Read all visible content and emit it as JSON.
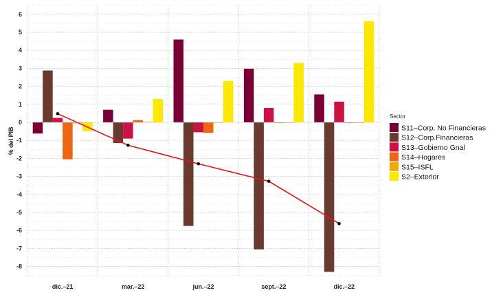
{
  "chart_data": {
    "type": "bar",
    "ylabel": "% del PIB",
    "xlabel": "",
    "ylim": [
      -8.8,
      6.5
    ],
    "yticks": [
      6,
      5,
      4,
      3,
      2,
      1,
      0,
      -1,
      -2,
      -3,
      -4,
      -5,
      -6,
      -7,
      -8
    ],
    "grid": true,
    "categories": [
      "dic.–21",
      "mar.–22",
      "jun.–22",
      "sept.–22",
      "dic.–22"
    ],
    "series": [
      {
        "name": "S11–Corp. No Financieras",
        "color": "#7a0033",
        "values": [
          -0.62,
          0.7,
          4.6,
          2.98,
          1.55
        ]
      },
      {
        "name": "S12–Corp.Financieras",
        "color": "#6b3a2e",
        "values": [
          2.88,
          -1.15,
          -5.75,
          -7.05,
          -8.3
        ]
      },
      {
        "name": "S13–Gobierno Gnal",
        "color": "#cc1144",
        "values": [
          0.25,
          -0.9,
          -0.55,
          0.8,
          1.15
        ]
      },
      {
        "name": "S14–Hogares",
        "color": "#ee6611",
        "values": [
          -2.05,
          0.12,
          -0.58,
          -0.02,
          -0.03
        ]
      },
      {
        "name": "S15–ISFL",
        "color": "#f5a800",
        "values": [
          -0.05,
          0.03,
          0.0,
          0.0,
          0.0
        ]
      },
      {
        "name": "S2–Exterior",
        "color": "#ffe800",
        "values": [
          -0.48,
          1.3,
          2.3,
          3.3,
          5.62
        ]
      }
    ],
    "line": {
      "color": "#ee1111",
      "values": [
        0.48,
        -1.27,
        -2.3,
        -3.27,
        -5.62
      ]
    },
    "legend": {
      "title": "Sector",
      "position": "right"
    }
  }
}
